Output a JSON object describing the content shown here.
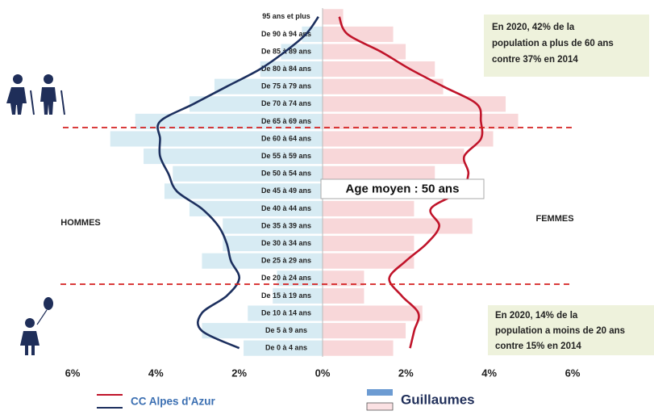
{
  "chart_data": {
    "type": "pyramid",
    "categories": [
      "95 ans et plus",
      "De 90 à 94 ans",
      "De 85 à 89 ans",
      "De 80 à 84 ans",
      "De 75 à 79 ans",
      "De 70 à 74 ans",
      "De 65 à 69 ans",
      "De 60 à 64 ans",
      "De 55 à 59 ans",
      "De 50 à 54 ans",
      "De 45 à 49 ans",
      "De 40 à 44 ans",
      "De 35 à 39 ans",
      "De 30 à 34 ans",
      "De 25 à 29 ans",
      "De 20 à 24 ans",
      "De 15 à 19 ans",
      "De 10 à 14 ans",
      "De 5 à 9 ans",
      "De 0 à 4 ans"
    ],
    "side_labels": [
      "HOMMES",
      "FEMMES"
    ],
    "series": [
      {
        "name": "Guillaumes",
        "kind": "bar",
        "color_hommes": "#d7ebf3",
        "color_femmes": "#f8d7d9",
        "legend_colors": [
          "#6c9bd2",
          "#fbe1e3"
        ],
        "hommes": [
          0,
          0.5,
          1.0,
          1.5,
          2.6,
          3.2,
          4.5,
          5.1,
          4.3,
          3.6,
          3.8,
          3.2,
          2.4,
          2.4,
          2.9,
          1.1,
          1.2,
          1.8,
          2.9,
          1.9
        ],
        "femmes": [
          0.5,
          1.7,
          2.0,
          2.7,
          2.9,
          4.4,
          4.7,
          4.1,
          3.4,
          2.7,
          2.2,
          2.2,
          3.6,
          2.2,
          2.2,
          1.0,
          1.0,
          2.4,
          2.0,
          1.7
        ]
      },
      {
        "name": "CC Alpes d'Azur",
        "kind": "line",
        "color_hommes": "#1c2f5e",
        "color_femmes": "#c0142a",
        "hommes": [
          0.1,
          0.4,
          0.9,
          1.5,
          2.3,
          3.1,
          3.9,
          3.9,
          3.9,
          3.7,
          3.5,
          2.9,
          2.5,
          2.3,
          2.2,
          2.0,
          2.3,
          2.9,
          2.9,
          2.0
        ],
        "femmes": [
          0.4,
          0.6,
          1.4,
          2.1,
          2.9,
          3.7,
          3.8,
          3.8,
          3.4,
          3.5,
          3.3,
          2.6,
          2.8,
          2.5,
          2.0,
          1.6,
          1.9,
          2.3,
          2.2,
          2.1
        ]
      }
    ],
    "xlim": [
      -6,
      6
    ],
    "xticks": [
      {
        "value": -6,
        "label": "6%"
      },
      {
        "value": -4,
        "label": "4%"
      },
      {
        "value": -2,
        "label": "2%"
      },
      {
        "value": 0,
        "label": "0%"
      },
      {
        "value": 2,
        "label": "2%"
      },
      {
        "value": 4,
        "label": "4%"
      },
      {
        "value": 6,
        "label": "6%"
      }
    ],
    "annotations": {
      "age_moyen": "Age moyen : 50 ans",
      "top": [
        "En 2020, 42% de la",
        "population a plus de 60 ans",
        "contre 37% en 2014"
      ],
      "bottom": [
        "En 2020, 14% de la",
        "population a moins de 20 ans",
        "contre 15% en 2014"
      ]
    }
  }
}
